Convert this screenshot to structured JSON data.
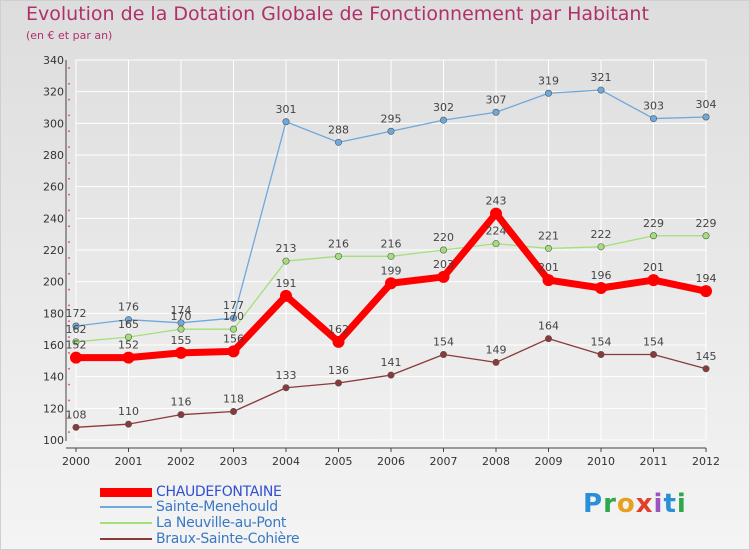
{
  "chart_data": {
    "type": "line",
    "title": "Evolution de la Dotation Globale de Fonctionnement par Habitant",
    "subtitle": "(en € et par an)",
    "xlabel": "",
    "ylabel": "",
    "categories": [
      "2000",
      "2001",
      "2002",
      "2003",
      "2004",
      "2005",
      "2006",
      "2007",
      "2008",
      "2009",
      "2010",
      "2011",
      "2012"
    ],
    "ylim": [
      100,
      340
    ],
    "yticks": [
      100,
      120,
      140,
      160,
      180,
      200,
      220,
      240,
      260,
      280,
      300,
      320,
      340
    ],
    "grid": true,
    "legend_position": "bottom-left",
    "series": [
      {
        "name": "CHAUDEFONTAINE",
        "color": "#ff0000",
        "width": 7,
        "values": [
          152,
          152,
          155,
          156,
          191,
          162,
          199,
          203,
          243,
          201,
          196,
          201,
          194
        ]
      },
      {
        "name": "Sainte-Menehould",
        "color": "#6fa8dc",
        "width": 1.3,
        "values": [
          172,
          176,
          174,
          177,
          301,
          288,
          295,
          302,
          307,
          319,
          321,
          303,
          304
        ]
      },
      {
        "name": "La Neuville-au-Pont",
        "color": "#a4e07a",
        "width": 1.3,
        "values": [
          162,
          165,
          170,
          170,
          213,
          216,
          216,
          220,
          224,
          221,
          222,
          229,
          229
        ]
      },
      {
        "name": "Braux-Sainte-Cohière",
        "color": "#8b3a3a",
        "width": 1.3,
        "values": [
          108,
          110,
          116,
          118,
          133,
          136,
          141,
          154,
          149,
          164,
          154,
          154,
          145
        ]
      }
    ]
  },
  "brand": {
    "letters": [
      "P",
      "r",
      "o",
      "x",
      "i",
      "t",
      "i"
    ],
    "colors": [
      "#2a8fd8",
      "#2ea84a",
      "#e8a020",
      "#e0402a",
      "#9a55c0",
      "#2a8fd8",
      "#2ea84a"
    ]
  }
}
